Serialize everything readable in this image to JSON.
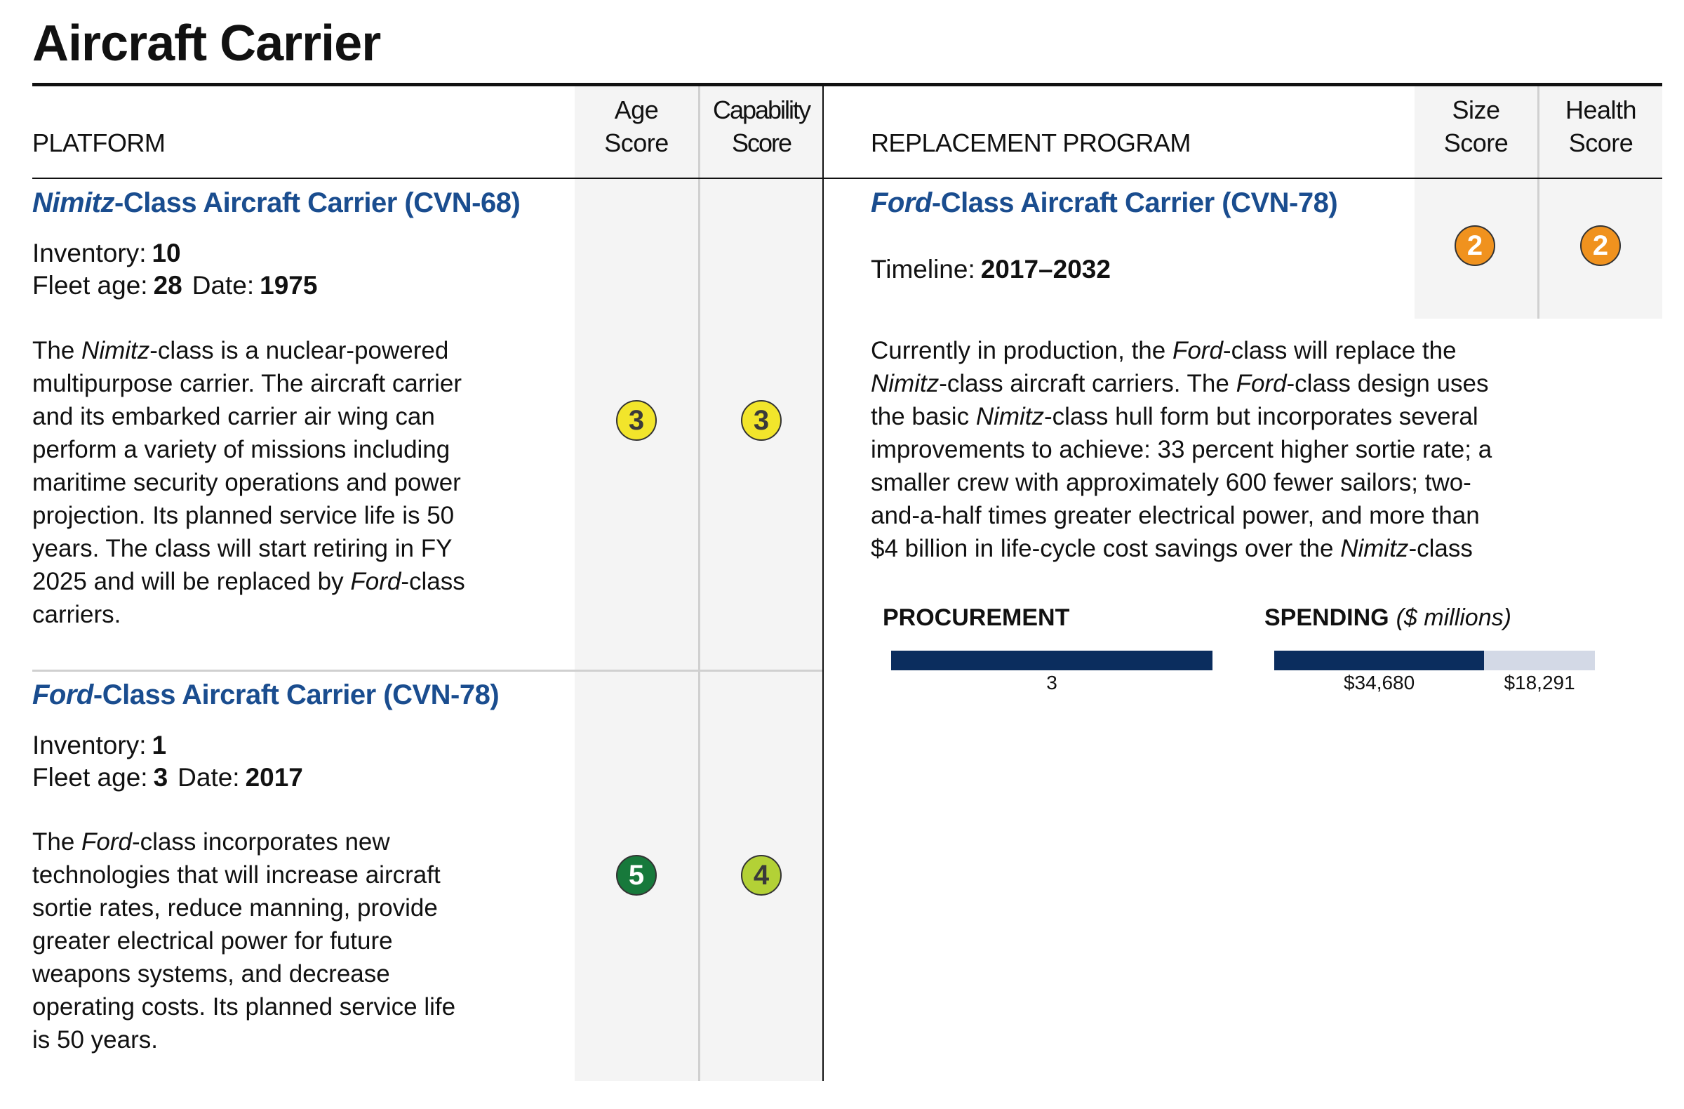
{
  "header": {
    "title": "Aircraft Carrier",
    "platform": "PLATFORM",
    "age_score": "Age\nScore",
    "capability_score": "Capability\nScore",
    "replacement_program": "REPLACEMENT PROGRAM",
    "size_score": "Size\nScore",
    "health_score": "Health\nScore"
  },
  "platforms": [
    {
      "title": [
        {
          "text": "Nimitz",
          "italic": true
        },
        "-Class Aircraft Carrier (CVN-68)"
      ],
      "inventory_label": "Inventory:",
      "inventory": 10,
      "fleet_age_label": "Fleet age:",
      "fleet_age": 28,
      "date_label": "Date:",
      "date": 1975,
      "description": [
        [
          "The ",
          {
            "text": "Nimitz",
            "italic": true
          },
          "-class is a nuclear-powered"
        ],
        [
          "multipurpose carrier. The aircraft carrier"
        ],
        [
          "and its embarked carrier air wing can"
        ],
        [
          "perform a variety of missions including"
        ],
        [
          "maritime security operations and power"
        ],
        [
          "projection. Its planned service life is 50"
        ],
        [
          "years. The class will start retiring in FY"
        ],
        [
          "2025 and will be replaced by ",
          {
            "text": "Ford",
            "italic": true
          },
          "-class"
        ],
        [
          "carriers."
        ]
      ],
      "age_score": {
        "value": 3,
        "color": "#f2e52b",
        "text_color": "#3a3a3a"
      },
      "capability_score": {
        "value": 3,
        "color": "#f2e52b",
        "text_color": "#3a3a3a"
      }
    },
    {
      "title": [
        {
          "text": "Ford",
          "italic": true
        },
        "-Class Aircraft Carrier (CVN-78)"
      ],
      "inventory_label": "Inventory:",
      "inventory": 1,
      "fleet_age_label": "Fleet age:",
      "fleet_age": 3,
      "date_label": "Date:",
      "date": 2017,
      "description": [
        [
          "The ",
          {
            "text": "Ford",
            "italic": true
          },
          "-class incorporates new"
        ],
        [
          "technologies that will increase aircraft"
        ],
        [
          "sortie rates, reduce manning, provide"
        ],
        [
          "greater electrical power for future"
        ],
        [
          "weapons systems, and decrease"
        ],
        [
          "operating costs. Its planned service life"
        ],
        [
          "is 50 years."
        ]
      ],
      "age_score": {
        "value": 5,
        "color": "#17793b",
        "text_color": "#ffffff"
      },
      "capability_score": {
        "value": 4,
        "color": "#b3d136",
        "text_color": "#3a3a3a"
      }
    }
  ],
  "replacement": {
    "title": [
      {
        "text": "Ford",
        "italic": true
      },
      "-Class Aircraft Carrier (CVN-78)"
    ],
    "timeline_label": "Timeline:",
    "timeline": "2017–2032",
    "size_score": {
      "value": 2,
      "color": "#f0921e",
      "text_color": "#ffffff"
    },
    "health_score": {
      "value": 2,
      "color": "#f0921e",
      "text_color": "#ffffff"
    },
    "description": [
      [
        "Currently in production, the ",
        {
          "text": "Ford",
          "italic": true
        },
        "-class will replace the"
      ],
      [
        {
          "text": "Nimitz",
          "italic": true
        },
        "-class aircraft carriers. The ",
        {
          "text": "Ford",
          "italic": true
        },
        "-class design uses"
      ],
      [
        "the basic ",
        {
          "text": "Nimitz",
          "italic": true
        },
        "-class hull form but incorporates several"
      ],
      [
        "improvements to achieve: 33 percent higher sortie rate; a"
      ],
      [
        "smaller crew with approximately 600 fewer sailors; two-"
      ],
      [
        "and-a-half times greater electrical power, and more than"
      ],
      [
        "$4 billion in life-cycle cost savings over the ",
        {
          "text": "Nimitz",
          "italic": true
        },
        "-class"
      ]
    ],
    "procurement": {
      "title": "PROCUREMENT",
      "values": [
        3
      ],
      "colors": [
        "#0b2d5e"
      ]
    },
    "spending": {
      "title": "SPENDING",
      "subtitle": "($ millions)",
      "values": [
        34680,
        18291
      ],
      "value_labels": [
        "$34,680",
        "$18,291"
      ],
      "colors": [
        "#0b2d5e",
        "#d3d9e6"
      ]
    }
  }
}
